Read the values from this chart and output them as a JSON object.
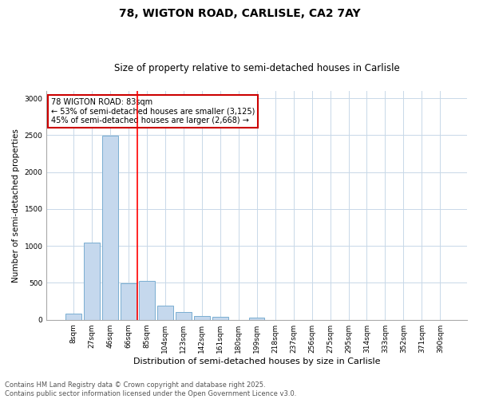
{
  "title1": "78, WIGTON ROAD, CARLISLE, CA2 7AY",
  "title2": "Size of property relative to semi-detached houses in Carlisle",
  "xlabel": "Distribution of semi-detached houses by size in Carlisle",
  "ylabel": "Number of semi-detached properties",
  "categories": [
    "8sqm",
    "27sqm",
    "46sqm",
    "66sqm",
    "85sqm",
    "104sqm",
    "123sqm",
    "142sqm",
    "161sqm",
    "180sqm",
    "199sqm",
    "218sqm",
    "237sqm",
    "256sqm",
    "275sqm",
    "295sqm",
    "314sqm",
    "333sqm",
    "352sqm",
    "371sqm",
    "390sqm"
  ],
  "values": [
    80,
    1050,
    2490,
    490,
    530,
    195,
    110,
    55,
    40,
    0,
    25,
    0,
    0,
    0,
    0,
    0,
    0,
    0,
    0,
    0,
    0
  ],
  "bar_color": "#c5d8ed",
  "bar_edge_color": "#7aaed1",
  "annotation_text": "78 WIGTON ROAD: 83sqm\n← 53% of semi-detached houses are smaller (3,125)\n45% of semi-detached houses are larger (2,668) →",
  "annotation_box_color": "#ffffff",
  "annotation_border_color": "#cc0000",
  "ylim": [
    0,
    3100
  ],
  "yticks": [
    0,
    500,
    1000,
    1500,
    2000,
    2500,
    3000
  ],
  "footer1": "Contains HM Land Registry data © Crown copyright and database right 2025.",
  "footer2": "Contains public sector information licensed under the Open Government Licence v3.0.",
  "bg_color": "#ffffff",
  "grid_color": "#c8d8e8",
  "title1_fontsize": 10,
  "title2_fontsize": 8.5,
  "ylabel_fontsize": 7.5,
  "xlabel_fontsize": 8,
  "tick_fontsize": 6.5,
  "footer_fontsize": 6,
  "annot_fontsize": 7
}
